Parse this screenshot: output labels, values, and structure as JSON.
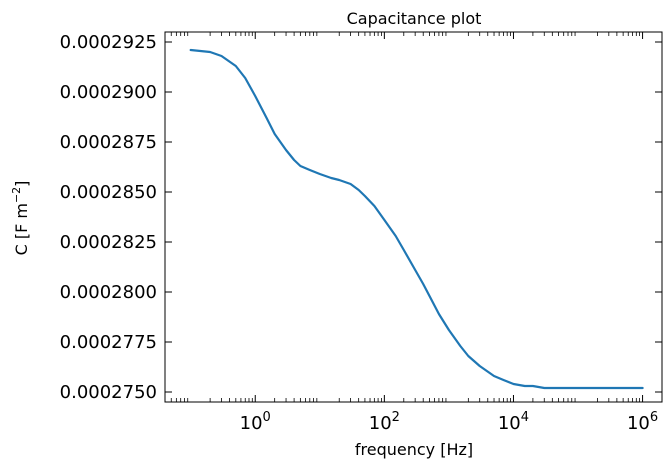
{
  "chart_data": {
    "type": "line",
    "title": "Capacitance plot",
    "xlabel": "frequency [Hz]",
    "ylabel": "C [F m",
    "ylabel_superscript": "−2",
    "ylabel_suffix": "]",
    "xscale": "log",
    "xlim": [
      0.04,
      2000000
    ],
    "ylim": [
      0.0002745,
      0.000293
    ],
    "grid": false,
    "x_ticks": [
      {
        "value": 1,
        "base": "10",
        "exp": "0"
      },
      {
        "value": 100,
        "base": "10",
        "exp": "2"
      },
      {
        "value": 10000,
        "base": "10",
        "exp": "4"
      },
      {
        "value": 1000000,
        "base": "10",
        "exp": "6"
      }
    ],
    "y_ticks": [
      {
        "value": 0.000275,
        "label": "0.0002750"
      },
      {
        "value": 0.0002775,
        "label": "0.0002775"
      },
      {
        "value": 0.00028,
        "label": "0.0002800"
      },
      {
        "value": 0.0002825,
        "label": "0.0002825"
      },
      {
        "value": 0.000285,
        "label": "0.0002850"
      },
      {
        "value": 0.0002875,
        "label": "0.0002875"
      },
      {
        "value": 0.00029,
        "label": "0.0002900"
      },
      {
        "value": 0.0002925,
        "label": "0.0002925"
      }
    ],
    "series": [
      {
        "color": "#1f77b4",
        "x": [
          0.1,
          0.2,
          0.3,
          0.5,
          0.7,
          1,
          1.5,
          2,
          3,
          4,
          5,
          7,
          10,
          15,
          20,
          30,
          40,
          50,
          70,
          100,
          150,
          200,
          300,
          400,
          500,
          700,
          1000,
          1500,
          2000,
          3000,
          5000,
          7000,
          10000,
          15000,
          20000,
          30000,
          50000,
          100000,
          200000,
          500000,
          1000000
        ],
        "values": [
          0.0002921,
          0.000292,
          0.0002918,
          0.0002913,
          0.0002907,
          0.0002898,
          0.0002887,
          0.0002879,
          0.0002871,
          0.0002866,
          0.0002863,
          0.0002861,
          0.0002859,
          0.0002857,
          0.0002856,
          0.0002854,
          0.0002851,
          0.0002848,
          0.0002843,
          0.0002836,
          0.0002828,
          0.0002821,
          0.0002811,
          0.0002804,
          0.0002798,
          0.0002789,
          0.0002781,
          0.0002773,
          0.0002768,
          0.0002763,
          0.0002758,
          0.0002756,
          0.0002754,
          0.0002753,
          0.0002753,
          0.0002752,
          0.0002752,
          0.0002752,
          0.0002752,
          0.0002752,
          0.0002752
        ]
      }
    ]
  }
}
